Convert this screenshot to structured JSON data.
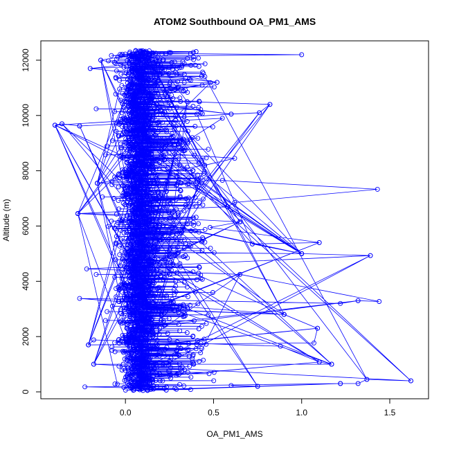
{
  "chart_data": {
    "type": "scatter",
    "title": "ATOM2 Southbound OA_PM1_AMS",
    "xlabel": "OA_PM1_AMS",
    "ylabel": "Altitude (m)",
    "xlim": [
      -0.48,
      1.72
    ],
    "ylim": [
      -250,
      12700
    ],
    "xticks": [
      0.0,
      0.5,
      1.0,
      1.5
    ],
    "xtick_labels": [
      "0.0",
      "0.5",
      "1.0",
      "1.5"
    ],
    "yticks": [
      0,
      2000,
      4000,
      6000,
      8000,
      10000,
      12000
    ],
    "ytick_labels": [
      "0",
      "2000",
      "4000",
      "6000",
      "8000",
      "10000",
      "12000"
    ],
    "grid": false,
    "legend": "none",
    "series": [
      {
        "color": "#0000ff",
        "marker": "open-circle",
        "line": true,
        "points": [
          {
            "x": 0.05,
            "y": 12150
          },
          {
            "x": 1.0,
            "y": 12200
          },
          {
            "x": 0.1,
            "y": 12250
          },
          {
            "x": -0.14,
            "y": 12000
          },
          {
            "x": 0.52,
            "y": 11200
          },
          {
            "x": -0.2,
            "y": 11700
          },
          {
            "x": 0.2,
            "y": 11800
          },
          {
            "x": 0.35,
            "y": 10500
          },
          {
            "x": 0.82,
            "y": 10400
          },
          {
            "x": 0.76,
            "y": 10100
          },
          {
            "x": 0.6,
            "y": 10050
          },
          {
            "x": -0.4,
            "y": 9650
          },
          {
            "x": -0.36,
            "y": 9700
          },
          {
            "x": -0.26,
            "y": 9620
          },
          {
            "x": 0.55,
            "y": 9900
          },
          {
            "x": 0.38,
            "y": 9200
          },
          {
            "x": 0.28,
            "y": 8600
          },
          {
            "x": 0.62,
            "y": 8450
          },
          {
            "x": 0.45,
            "y": 8200
          },
          {
            "x": -0.16,
            "y": 7550
          },
          {
            "x": 0.55,
            "y": 7650
          },
          {
            "x": 1.43,
            "y": 7330
          },
          {
            "x": 0.62,
            "y": 6850
          },
          {
            "x": 0.58,
            "y": 6700
          },
          {
            "x": -0.27,
            "y": 6450
          },
          {
            "x": 0.65,
            "y": 6150
          },
          {
            "x": 0.48,
            "y": 5950
          },
          {
            "x": 1.1,
            "y": 5400
          },
          {
            "x": 0.72,
            "y": 5350
          },
          {
            "x": 1.0,
            "y": 5000
          },
          {
            "x": 1.39,
            "y": 4930
          },
          {
            "x": -0.22,
            "y": 4450
          },
          {
            "x": 0.65,
            "y": 4250
          },
          {
            "x": 1.44,
            "y": 3270
          },
          {
            "x": 1.32,
            "y": 3300
          },
          {
            "x": 1.22,
            "y": 3200
          },
          {
            "x": -0.26,
            "y": 3380
          },
          {
            "x": 0.9,
            "y": 2800
          },
          {
            "x": 1.09,
            "y": 2300
          },
          {
            "x": 1.07,
            "y": 1770
          },
          {
            "x": -0.21,
            "y": 1700
          },
          {
            "x": -0.18,
            "y": 1880
          },
          {
            "x": 0.88,
            "y": 1650
          },
          {
            "x": 1.1,
            "y": 1080
          },
          {
            "x": 1.17,
            "y": 1000
          },
          {
            "x": -0.18,
            "y": 1000
          },
          {
            "x": 1.62,
            "y": 400
          },
          {
            "x": 1.37,
            "y": 450
          },
          {
            "x": 1.32,
            "y": 300
          },
          {
            "x": 1.22,
            "y": 300
          },
          {
            "x": -0.23,
            "y": 180
          },
          {
            "x": 0.22,
            "y": 120
          },
          {
            "x": 0.1,
            "y": 50
          },
          {
            "x": 0.75,
            "y": 200
          },
          {
            "x": 0.6,
            "y": 230
          }
        ]
      }
    ]
  }
}
